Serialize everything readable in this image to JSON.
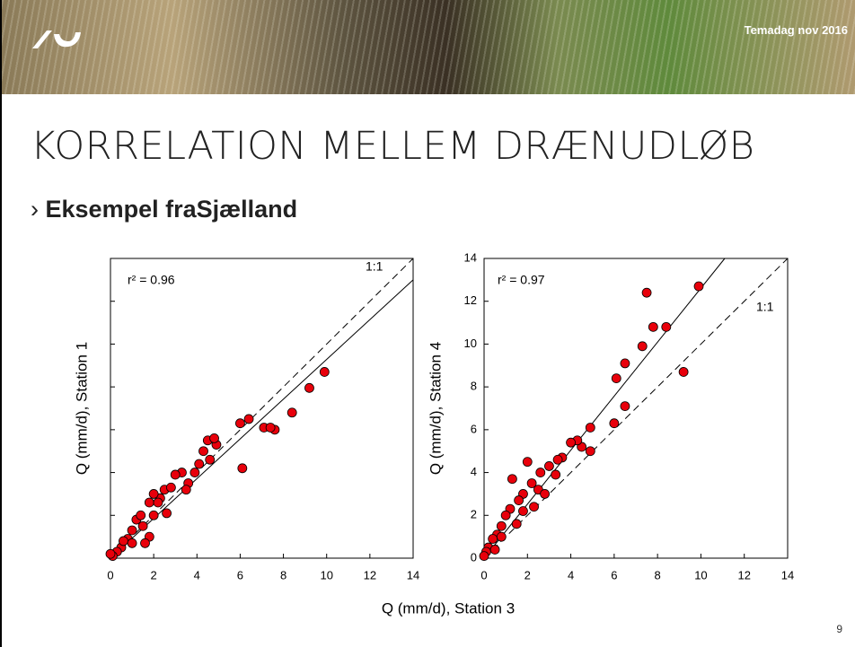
{
  "header": {
    "tag": "Temadag nov 2016"
  },
  "title": "KORRELATION MELLEM DRÆNUDLØB",
  "bullet": {
    "marker": "›",
    "text": "Eksempel fraSjælland"
  },
  "xlabel": "Q (mm/d), Station 3",
  "page_number": "9",
  "chart_data": [
    {
      "type": "scatter",
      "ylabel": "Q (mm/d), Station 1",
      "annotation": "r² = 0.96",
      "ref_label": "1:1",
      "xlim": [
        0,
        14
      ],
      "ylim": [
        0,
        14
      ],
      "xticks": [
        0,
        2,
        4,
        6,
        8,
        10,
        12,
        14
      ],
      "yticks": [
        0,
        2,
        4,
        6,
        8,
        10,
        12,
        14
      ],
      "show_ytick_labels": false,
      "color": "#e8000b",
      "fit_line": {
        "x": [
          0,
          14
        ],
        "y": [
          0,
          13
        ]
      },
      "ref_line": {
        "x": [
          0,
          14
        ],
        "y": [
          0,
          14
        ]
      },
      "x": [
        9.9,
        9.2,
        8.4,
        7.6,
        7.1,
        7.4,
        6.1,
        6.4,
        6.0,
        4.9,
        4.5,
        4.3,
        4.8,
        3.9,
        3.6,
        3.3,
        3.0,
        2.5,
        2.3,
        2.0,
        1.8,
        2.0,
        1.5,
        1.8,
        1.2,
        1.0,
        0.8,
        0.5,
        0.3,
        0.1,
        0.0,
        1.4,
        2.2,
        2.8,
        1.6,
        3.5,
        0.6,
        1.0,
        2.6,
        4.1,
        4.6
      ],
      "values": [
        8.7,
        7.95,
        6.8,
        6.0,
        6.1,
        6.1,
        4.2,
        6.5,
        6.3,
        5.3,
        5.5,
        5.0,
        5.6,
        4.0,
        3.5,
        4.0,
        3.9,
        3.2,
        2.8,
        3.0,
        2.6,
        2.0,
        1.5,
        1.0,
        1.8,
        1.3,
        0.9,
        0.5,
        0.3,
        0.1,
        0.2,
        2.0,
        2.6,
        3.3,
        0.7,
        3.2,
        0.8,
        0.7,
        2.1,
        4.4,
        4.6
      ]
    },
    {
      "type": "scatter",
      "ylabel": "Q (mm/d), Station 4",
      "annotation": "r² = 0.97",
      "ref_label": "1:1",
      "xlim": [
        0,
        14
      ],
      "ylim": [
        0,
        14
      ],
      "xticks": [
        0,
        2,
        4,
        6,
        8,
        10,
        12,
        14
      ],
      "yticks": [
        0,
        2,
        4,
        6,
        8,
        10,
        12,
        14
      ],
      "show_ytick_labels": true,
      "color": "#e8000b",
      "fit_line": {
        "x": [
          0,
          11.1
        ],
        "y": [
          0,
          14
        ]
      },
      "ref_line": {
        "x": [
          0,
          14
        ],
        "y": [
          0,
          14
        ]
      },
      "x": [
        9.9,
        7.5,
        8.4,
        7.8,
        7.3,
        6.5,
        6.1,
        9.2,
        6.5,
        6.0,
        4.9,
        4.9,
        4.5,
        4.3,
        4.0,
        3.6,
        3.4,
        3.0,
        2.6,
        2.0,
        1.3,
        2.2,
        1.8,
        1.6,
        2.5,
        1.2,
        1.0,
        0.8,
        0.6,
        0.4,
        0.2,
        0.1,
        0.0,
        1.5,
        2.8,
        3.3,
        2.3,
        0.8,
        1.8,
        0.5
      ],
      "values": [
        12.7,
        12.4,
        10.8,
        10.8,
        9.9,
        9.1,
        8.4,
        8.7,
        7.1,
        6.3,
        6.1,
        5.0,
        5.2,
        5.5,
        5.4,
        4.7,
        4.6,
        4.3,
        4.0,
        4.5,
        3.7,
        3.5,
        3.0,
        2.7,
        3.2,
        2.3,
        2.0,
        1.5,
        1.1,
        0.9,
        0.5,
        0.3,
        0.1,
        1.6,
        3.0,
        3.9,
        2.4,
        1.0,
        2.2,
        0.4
      ]
    }
  ]
}
